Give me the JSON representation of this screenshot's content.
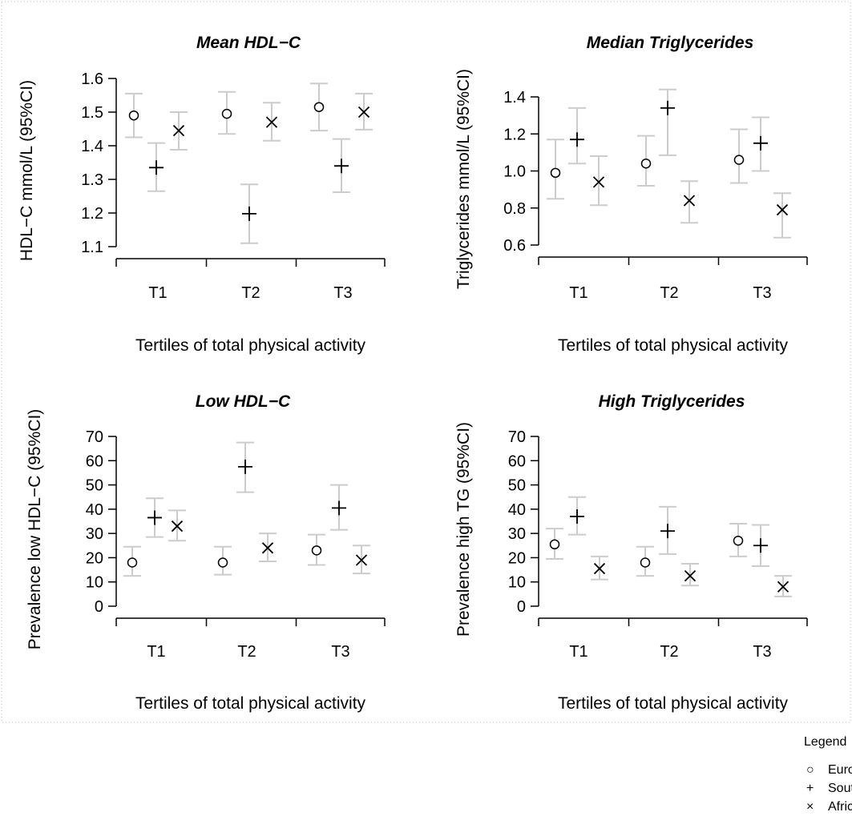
{
  "chart_data": [
    {
      "type": "scatter",
      "title": "Mean HDL−C",
      "xlabel": "Tertiles of total physical activity",
      "ylabel": "HDL−C mmol/L (95%CI)",
      "categories": [
        "T1",
        "T2",
        "T3"
      ],
      "ylim": [
        1.1,
        1.6
      ],
      "yticks": [
        "1.1",
        "1.2",
        "1.3",
        "1.4",
        "1.5",
        "1.6"
      ],
      "series": [
        {
          "values": [
            1.49,
            1.495,
            1.515
          ],
          "lower": [
            1.425,
            1.435,
            1.445
          ],
          "upper": [
            1.555,
            1.56,
            1.585
          ]
        },
        {
          "values": [
            1.335,
            1.198,
            1.34
          ],
          "lower": [
            1.265,
            1.11,
            1.262
          ],
          "upper": [
            1.408,
            1.285,
            1.42
          ]
        },
        {
          "values": [
            1.445,
            1.47,
            1.5
          ],
          "lower": [
            1.388,
            1.415,
            1.448
          ],
          "upper": [
            1.5,
            1.528,
            1.555
          ]
        }
      ]
    },
    {
      "type": "scatter",
      "title": "Median Triglycerides",
      "xlabel": "Tertiles of total physical activity",
      "ylabel": "Triglycerides mmol/L (95%CI)",
      "categories": [
        "T1",
        "T2",
        "T3"
      ],
      "ylim": [
        0.6,
        1.4
      ],
      "yticks": [
        "0.6",
        "0.8",
        "1.0",
        "1.2",
        "1.4"
      ],
      "series": [
        {
          "values": [
            0.99,
            1.04,
            1.06
          ],
          "lower": [
            0.85,
            0.92,
            0.935
          ],
          "upper": [
            1.17,
            1.19,
            1.225
          ]
        },
        {
          "values": [
            1.17,
            1.34,
            1.15
          ],
          "lower": [
            1.04,
            1.085,
            1.0
          ],
          "upper": [
            1.34,
            1.44,
            1.29
          ]
        },
        {
          "values": [
            0.94,
            0.84,
            0.79
          ],
          "lower": [
            0.815,
            0.72,
            0.64
          ],
          "upper": [
            1.08,
            0.945,
            0.88
          ]
        }
      ]
    },
    {
      "type": "scatter",
      "title": "Low HDL−C",
      "xlabel": "Tertiles of total physical activity",
      "ylabel": "Prevalence low HDL−C (95%CI)",
      "categories": [
        "T1",
        "T2",
        "T3"
      ],
      "ylim": [
        0,
        70
      ],
      "yticks": [
        "0",
        "10",
        "20",
        "30",
        "40",
        "50",
        "60",
        "70"
      ],
      "series": [
        {
          "values": [
            18,
            18,
            23
          ],
          "lower": [
            12.5,
            13,
            17
          ],
          "upper": [
            24.5,
            24.5,
            29.5
          ]
        },
        {
          "values": [
            36.5,
            57.5,
            40.5
          ],
          "lower": [
            28.5,
            47,
            31.5
          ],
          "upper": [
            44.5,
            67.5,
            50
          ]
        },
        {
          "values": [
            33,
            24,
            19
          ],
          "lower": [
            27,
            18.5,
            13.5
          ],
          "upper": [
            39.5,
            30,
            25
          ]
        }
      ]
    },
    {
      "type": "scatter",
      "title": "High Triglycerides",
      "xlabel": "Tertiles of total physical activity",
      "ylabel": "Prevalence high TG (95%CI)",
      "categories": [
        "T1",
        "T2",
        "T3"
      ],
      "ylim": [
        0,
        70
      ],
      "yticks": [
        "0",
        "10",
        "20",
        "30",
        "40",
        "50",
        "60",
        "70"
      ],
      "series": [
        {
          "values": [
            25.5,
            18,
            27
          ],
          "lower": [
            19.5,
            12.5,
            20.5
          ],
          "upper": [
            32,
            24.5,
            34
          ]
        },
        {
          "values": [
            37,
            31,
            25
          ],
          "lower": [
            29.5,
            21.5,
            16.5
          ],
          "upper": [
            45,
            41,
            33.5
          ]
        },
        {
          "values": [
            15.5,
            12.5,
            8
          ],
          "lower": [
            11,
            8.5,
            4
          ],
          "upper": [
            20.5,
            17.5,
            12.5
          ]
        }
      ]
    }
  ],
  "legend": {
    "title": "Legend",
    "items": [
      {
        "symbol": "○",
        "label": "European−D"
      },
      {
        "symbol": "+",
        "label": "South Asian"
      },
      {
        "symbol": "×",
        "label": "African"
      }
    ]
  },
  "colors": {
    "errorbar": "#cccccc",
    "marker": "#000000",
    "axis": "#000000",
    "border": "#bbbbbb"
  }
}
